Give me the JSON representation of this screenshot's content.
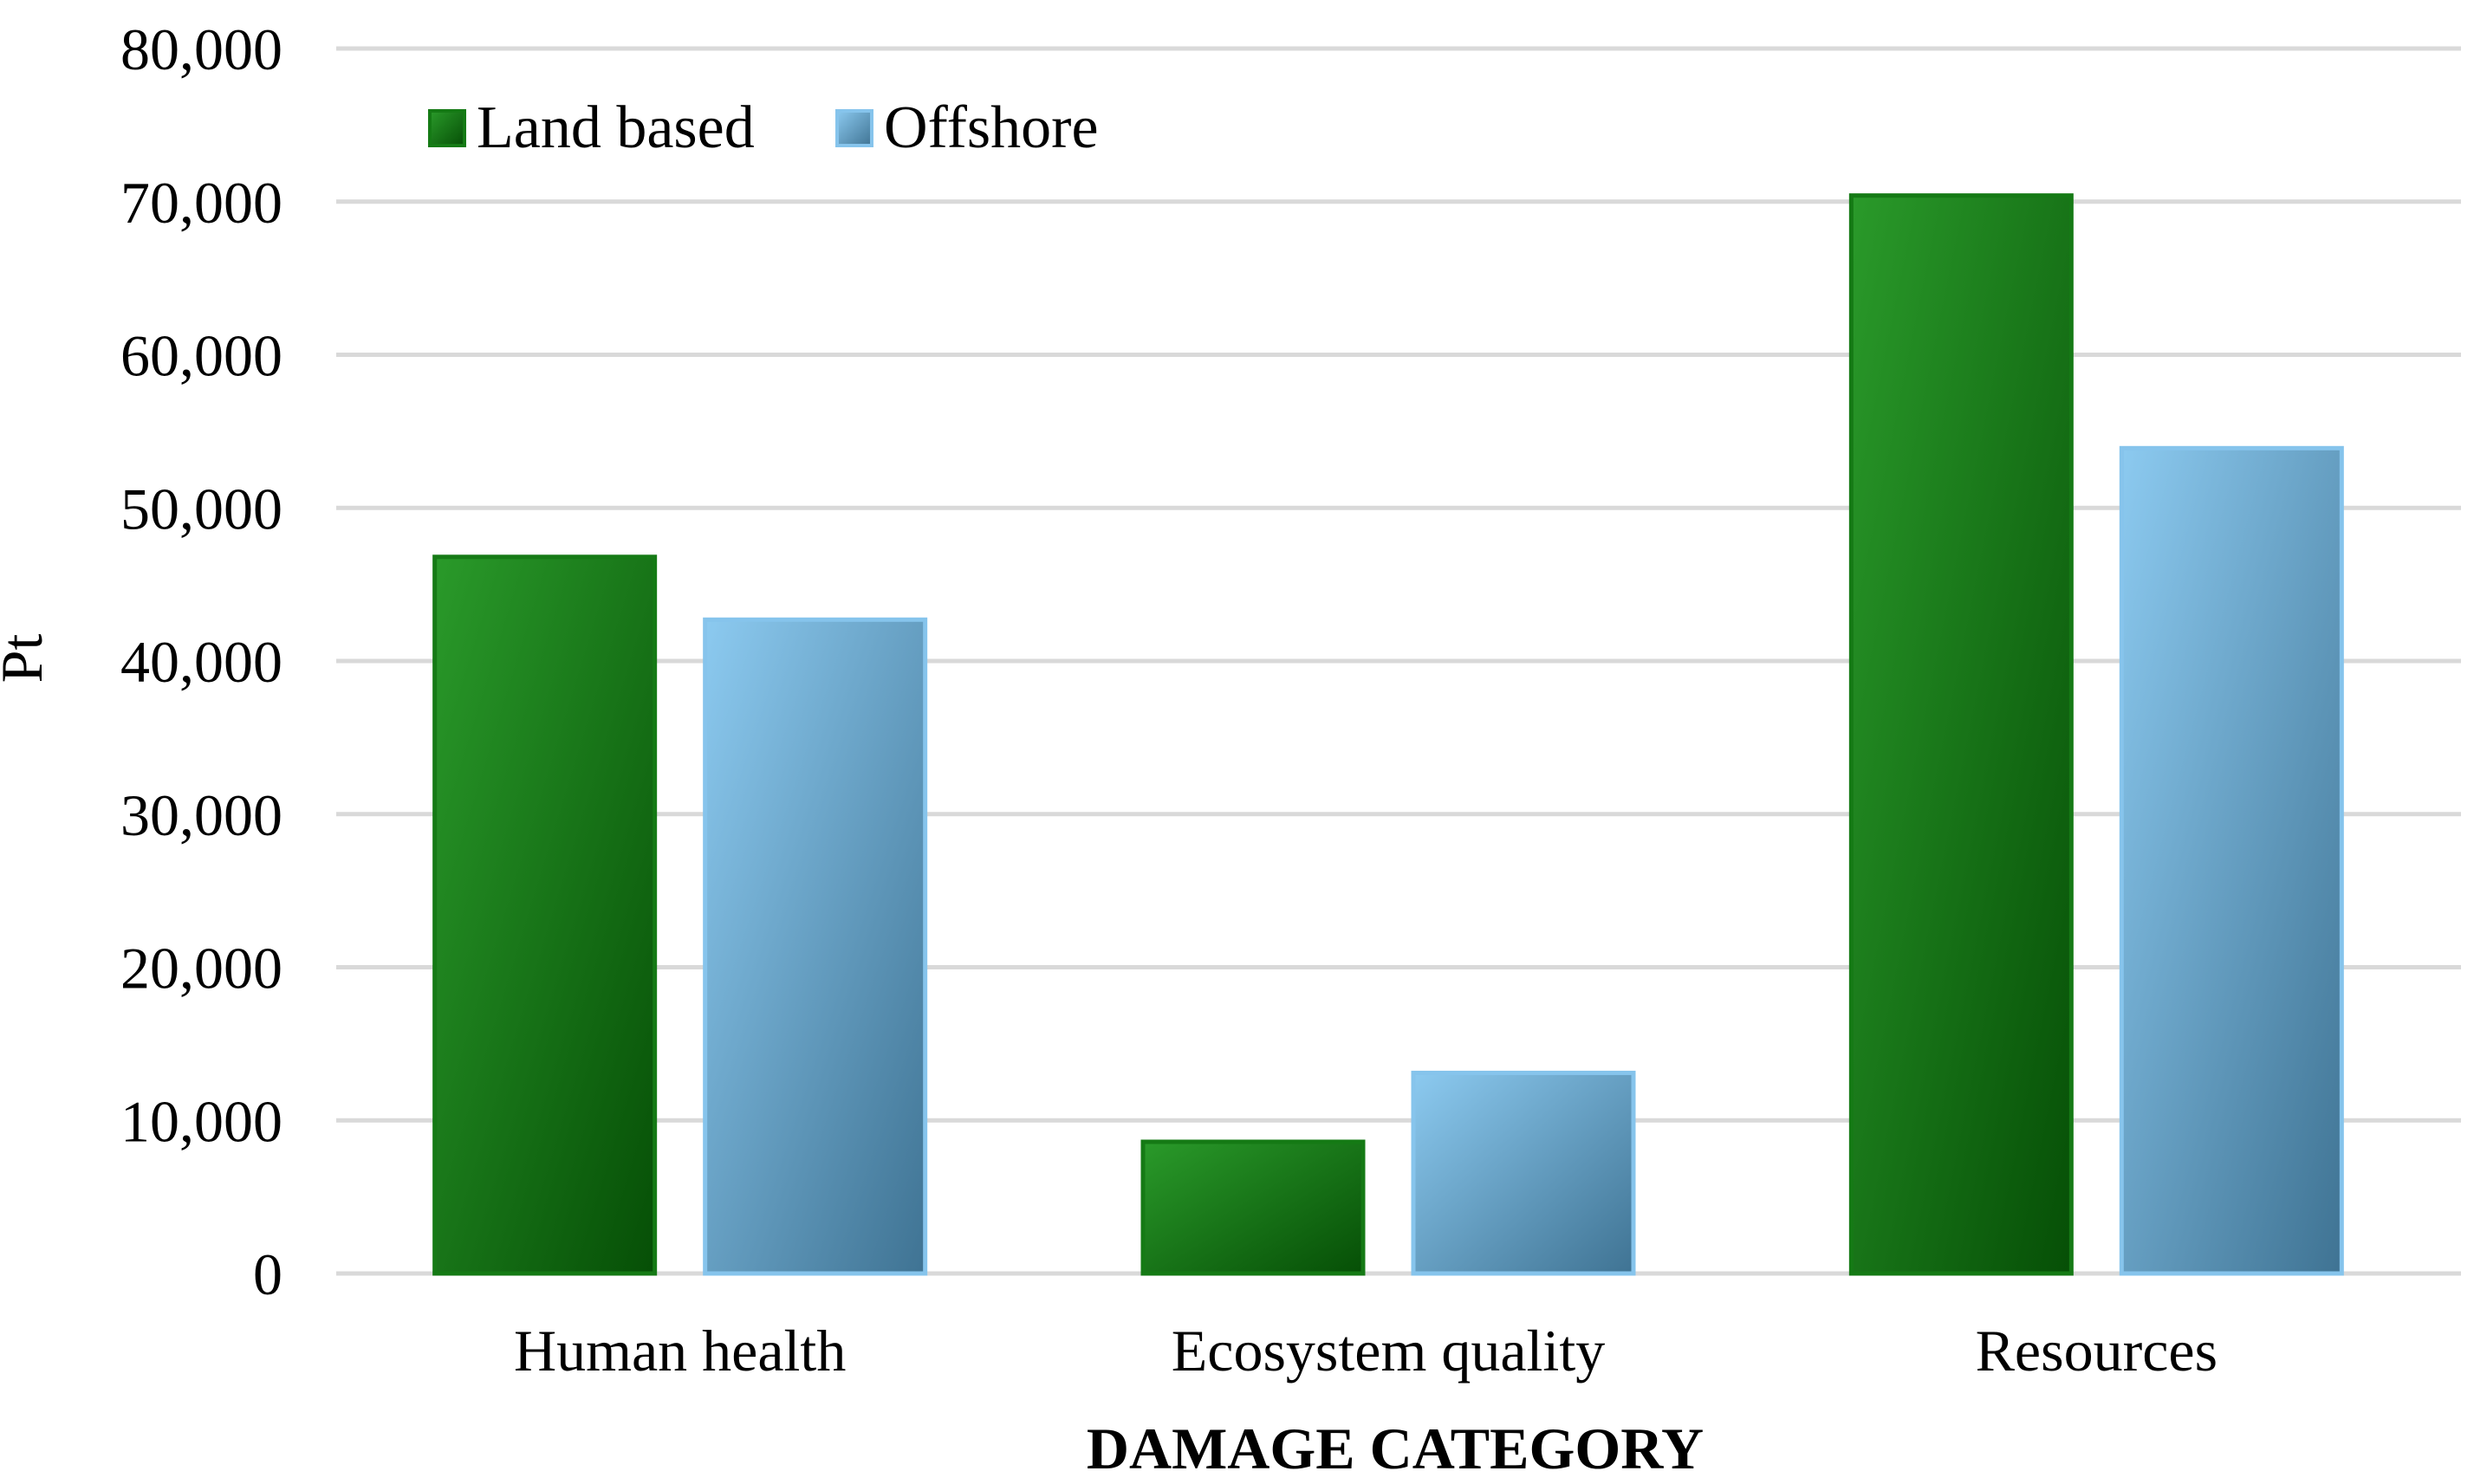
{
  "chart_data": {
    "type": "bar",
    "title": "",
    "xlabel": "DAMAGE CATEGORY",
    "ylabel": "Pt",
    "categories": [
      "Human health",
      "Ecosystem quality",
      "Resources"
    ],
    "series": [
      {
        "name": "Land based",
        "values": [
          46800,
          8600,
          70400
        ],
        "color": "#1f7f1f"
      },
      {
        "name": "Offshore",
        "values": [
          42700,
          13100,
          53900
        ],
        "color": "#6aaed6"
      }
    ],
    "ylim": [
      0,
      80000
    ],
    "yticks": [
      0,
      10000,
      20000,
      30000,
      40000,
      50000,
      60000,
      70000,
      80000
    ],
    "ytick_labels": [
      "0",
      "10,000",
      "20,000",
      "30,000",
      "40,000",
      "50,000",
      "60,000",
      "70,000",
      "80,000"
    ],
    "grid": true,
    "legend": "top-left"
  }
}
